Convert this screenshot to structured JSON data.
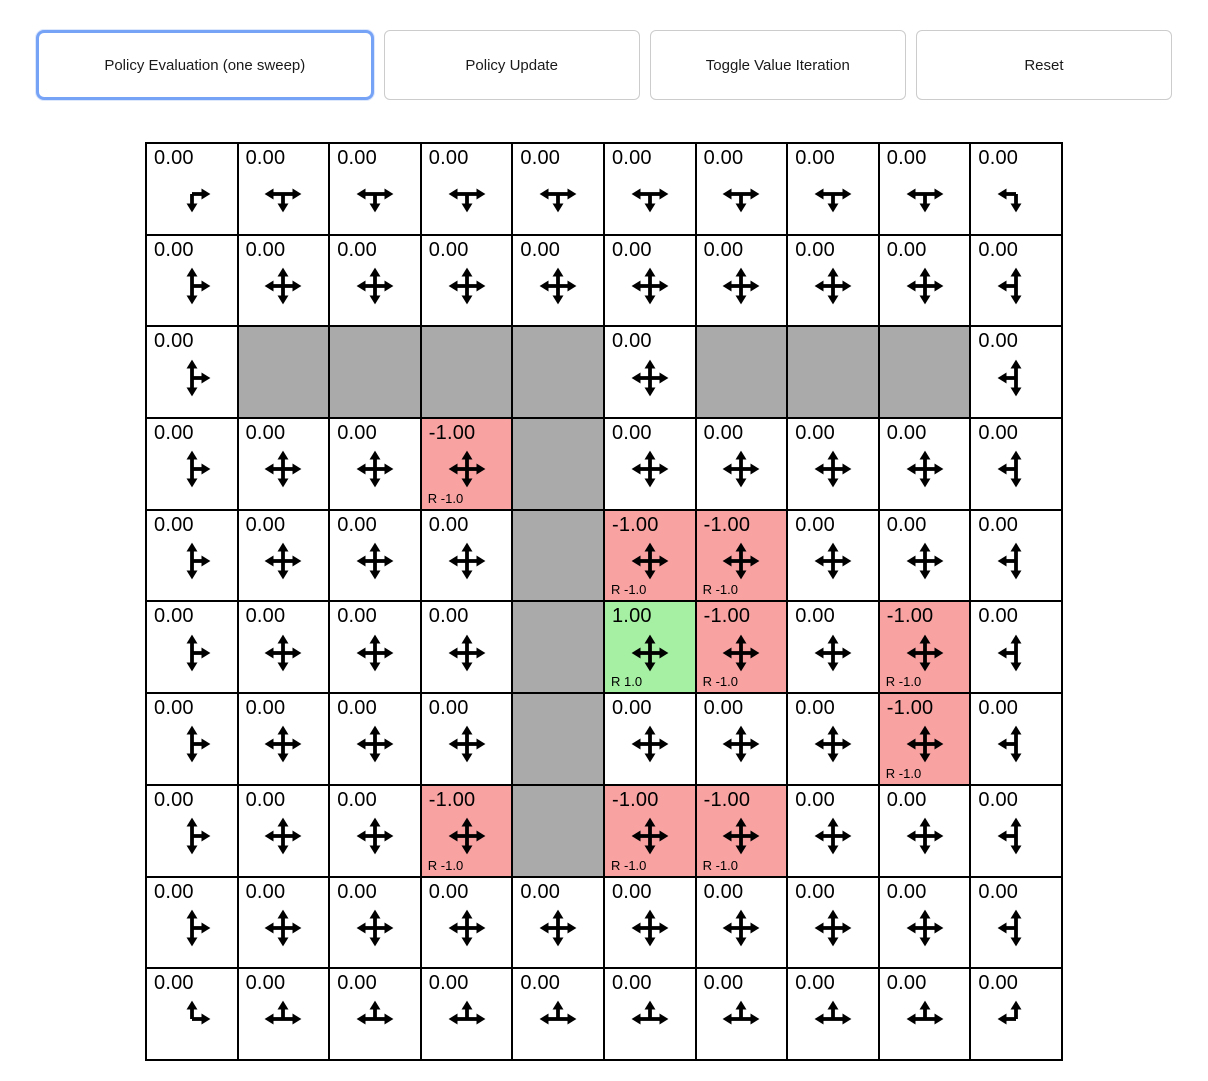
{
  "toolbar": {
    "buttons": [
      {
        "label": "Policy Evaluation (one sweep)",
        "active": true
      },
      {
        "label": "Policy Update",
        "active": false
      },
      {
        "label": "Toggle Value Iteration",
        "active": false
      },
      {
        "label": "Reset",
        "active": false
      }
    ]
  },
  "colors": {
    "wall": "#aaaaaa",
    "negative_cell": "#f8a2a2",
    "positive_cell": "#a5f0a2",
    "active_button_border": "#77a3f7",
    "button_border": "#cccccc",
    "arrow": "#000000"
  },
  "grid": {
    "rows": 10,
    "cols": 10,
    "cells": [
      [
        {
          "v": "0.00",
          "t": "empty",
          "a": "dr"
        },
        {
          "v": "0.00",
          "t": "empty",
          "a": "ldr"
        },
        {
          "v": "0.00",
          "t": "empty",
          "a": "ldr"
        },
        {
          "v": "0.00",
          "t": "empty",
          "a": "ldr"
        },
        {
          "v": "0.00",
          "t": "empty",
          "a": "ldr"
        },
        {
          "v": "0.00",
          "t": "empty",
          "a": "ldr"
        },
        {
          "v": "0.00",
          "t": "empty",
          "a": "ldr"
        },
        {
          "v": "0.00",
          "t": "empty",
          "a": "ldr"
        },
        {
          "v": "0.00",
          "t": "empty",
          "a": "ldr"
        },
        {
          "v": "0.00",
          "t": "empty",
          "a": "ld"
        }
      ],
      [
        {
          "v": "0.00",
          "t": "empty",
          "a": "udr"
        },
        {
          "v": "0.00",
          "t": "empty",
          "a": "udlr"
        },
        {
          "v": "0.00",
          "t": "empty",
          "a": "udlr"
        },
        {
          "v": "0.00",
          "t": "empty",
          "a": "udlr"
        },
        {
          "v": "0.00",
          "t": "empty",
          "a": "udlr"
        },
        {
          "v": "0.00",
          "t": "empty",
          "a": "udlr"
        },
        {
          "v": "0.00",
          "t": "empty",
          "a": "udlr"
        },
        {
          "v": "0.00",
          "t": "empty",
          "a": "udlr"
        },
        {
          "v": "0.00",
          "t": "empty",
          "a": "udlr"
        },
        {
          "v": "0.00",
          "t": "empty",
          "a": "udl"
        }
      ],
      [
        {
          "v": "0.00",
          "t": "empty",
          "a": "udr"
        },
        {
          "t": "wall"
        },
        {
          "t": "wall"
        },
        {
          "t": "wall"
        },
        {
          "t": "wall"
        },
        {
          "v": "0.00",
          "t": "empty",
          "a": "udlr"
        },
        {
          "t": "wall"
        },
        {
          "t": "wall"
        },
        {
          "t": "wall"
        },
        {
          "v": "0.00",
          "t": "empty",
          "a": "udl"
        }
      ],
      [
        {
          "v": "0.00",
          "t": "empty",
          "a": "udr"
        },
        {
          "v": "0.00",
          "t": "empty",
          "a": "udlr"
        },
        {
          "v": "0.00",
          "t": "empty",
          "a": "udlr"
        },
        {
          "v": "-1.00",
          "t": "neg",
          "r": "R -1.0",
          "a": "udlr"
        },
        {
          "t": "wall"
        },
        {
          "v": "0.00",
          "t": "empty",
          "a": "udlr"
        },
        {
          "v": "0.00",
          "t": "empty",
          "a": "udlr"
        },
        {
          "v": "0.00",
          "t": "empty",
          "a": "udlr"
        },
        {
          "v": "0.00",
          "t": "empty",
          "a": "udlr"
        },
        {
          "v": "0.00",
          "t": "empty",
          "a": "udl"
        }
      ],
      [
        {
          "v": "0.00",
          "t": "empty",
          "a": "udr"
        },
        {
          "v": "0.00",
          "t": "empty",
          "a": "udlr"
        },
        {
          "v": "0.00",
          "t": "empty",
          "a": "udlr"
        },
        {
          "v": "0.00",
          "t": "empty",
          "a": "udlr"
        },
        {
          "t": "wall"
        },
        {
          "v": "-1.00",
          "t": "neg",
          "r": "R -1.0",
          "a": "udlr"
        },
        {
          "v": "-1.00",
          "t": "neg",
          "r": "R -1.0",
          "a": "udlr"
        },
        {
          "v": "0.00",
          "t": "empty",
          "a": "udlr"
        },
        {
          "v": "0.00",
          "t": "empty",
          "a": "udlr"
        },
        {
          "v": "0.00",
          "t": "empty",
          "a": "udl"
        }
      ],
      [
        {
          "v": "0.00",
          "t": "empty",
          "a": "udr"
        },
        {
          "v": "0.00",
          "t": "empty",
          "a": "udlr"
        },
        {
          "v": "0.00",
          "t": "empty",
          "a": "udlr"
        },
        {
          "v": "0.00",
          "t": "empty",
          "a": "udlr"
        },
        {
          "t": "wall"
        },
        {
          "v": "1.00",
          "t": "pos",
          "r": "R 1.0",
          "a": "udlr"
        },
        {
          "v": "-1.00",
          "t": "neg",
          "r": "R -1.0",
          "a": "udlr"
        },
        {
          "v": "0.00",
          "t": "empty",
          "a": "udlr"
        },
        {
          "v": "-1.00",
          "t": "neg",
          "r": "R -1.0",
          "a": "udlr"
        },
        {
          "v": "0.00",
          "t": "empty",
          "a": "udl"
        }
      ],
      [
        {
          "v": "0.00",
          "t": "empty",
          "a": "udr"
        },
        {
          "v": "0.00",
          "t": "empty",
          "a": "udlr"
        },
        {
          "v": "0.00",
          "t": "empty",
          "a": "udlr"
        },
        {
          "v": "0.00",
          "t": "empty",
          "a": "udlr"
        },
        {
          "t": "wall"
        },
        {
          "v": "0.00",
          "t": "empty",
          "a": "udlr"
        },
        {
          "v": "0.00",
          "t": "empty",
          "a": "udlr"
        },
        {
          "v": "0.00",
          "t": "empty",
          "a": "udlr"
        },
        {
          "v": "-1.00",
          "t": "neg",
          "r": "R -1.0",
          "a": "udlr"
        },
        {
          "v": "0.00",
          "t": "empty",
          "a": "udl"
        }
      ],
      [
        {
          "v": "0.00",
          "t": "empty",
          "a": "udr"
        },
        {
          "v": "0.00",
          "t": "empty",
          "a": "udlr"
        },
        {
          "v": "0.00",
          "t": "empty",
          "a": "udlr"
        },
        {
          "v": "-1.00",
          "t": "neg",
          "r": "R -1.0",
          "a": "udlr"
        },
        {
          "t": "wall"
        },
        {
          "v": "-1.00",
          "t": "neg",
          "r": "R -1.0",
          "a": "udlr"
        },
        {
          "v": "-1.00",
          "t": "neg",
          "r": "R -1.0",
          "a": "udlr"
        },
        {
          "v": "0.00",
          "t": "empty",
          "a": "udlr"
        },
        {
          "v": "0.00",
          "t": "empty",
          "a": "udlr"
        },
        {
          "v": "0.00",
          "t": "empty",
          "a": "udl"
        }
      ],
      [
        {
          "v": "0.00",
          "t": "empty",
          "a": "udr"
        },
        {
          "v": "0.00",
          "t": "empty",
          "a": "udlr"
        },
        {
          "v": "0.00",
          "t": "empty",
          "a": "udlr"
        },
        {
          "v": "0.00",
          "t": "empty",
          "a": "udlr"
        },
        {
          "v": "0.00",
          "t": "empty",
          "a": "udlr"
        },
        {
          "v": "0.00",
          "t": "empty",
          "a": "udlr"
        },
        {
          "v": "0.00",
          "t": "empty",
          "a": "udlr"
        },
        {
          "v": "0.00",
          "t": "empty",
          "a": "udlr"
        },
        {
          "v": "0.00",
          "t": "empty",
          "a": "udlr"
        },
        {
          "v": "0.00",
          "t": "empty",
          "a": "udl"
        }
      ],
      [
        {
          "v": "0.00",
          "t": "empty",
          "a": "ur"
        },
        {
          "v": "0.00",
          "t": "empty",
          "a": "ulr"
        },
        {
          "v": "0.00",
          "t": "empty",
          "a": "ulr"
        },
        {
          "v": "0.00",
          "t": "empty",
          "a": "ulr"
        },
        {
          "v": "0.00",
          "t": "empty",
          "a": "ulr"
        },
        {
          "v": "0.00",
          "t": "empty",
          "a": "ulr"
        },
        {
          "v": "0.00",
          "t": "empty",
          "a": "ulr"
        },
        {
          "v": "0.00",
          "t": "empty",
          "a": "ulr"
        },
        {
          "v": "0.00",
          "t": "empty",
          "a": "ulr"
        },
        {
          "v": "0.00",
          "t": "empty",
          "a": "ul"
        }
      ]
    ]
  }
}
